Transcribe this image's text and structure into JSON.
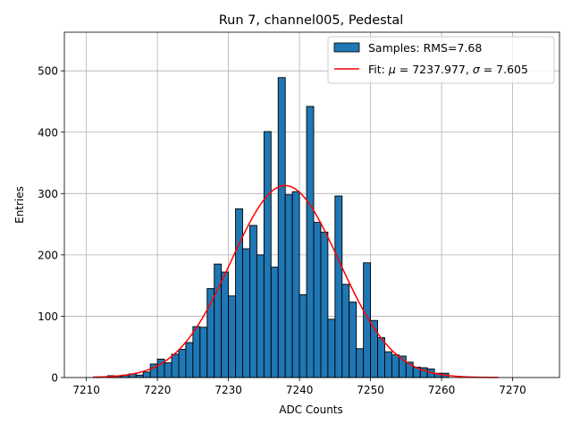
{
  "chart_data": {
    "type": "bar",
    "title": "Run 7, channel005, Pedestal",
    "xlabel": "ADC Counts",
    "ylabel": "Entries",
    "xlim": [
      7206.9,
      7276.6
    ],
    "ylim": [
      0,
      563
    ],
    "xticks": [
      7210,
      7220,
      7230,
      7240,
      7250,
      7260,
      7270
    ],
    "yticks": [
      0,
      100,
      200,
      300,
      400,
      500
    ],
    "grid": true,
    "legend_position": "upper right",
    "legend": {
      "histogram_label": "Samples: RMS=7.68",
      "fit_label_prefix": "Fit: ",
      "fit_mu_symbol": "μ",
      "fit_mu_text": " = 7237.977, ",
      "fit_sigma_symbol": "σ",
      "fit_sigma_text": " = 7.605"
    },
    "histogram": {
      "name": "Samples: RMS=7.68",
      "color": "#1f77b4",
      "edge_color": "#000000",
      "bin_start": 7211,
      "bin_width": 1,
      "counts": [
        1,
        0,
        3,
        2,
        4,
        6,
        4,
        9,
        22,
        30,
        24,
        38,
        46,
        57,
        83,
        82,
        145,
        185,
        172,
        133,
        275,
        210,
        248,
        200,
        401,
        180,
        489,
        298,
        303,
        135,
        442,
        253,
        237,
        95,
        296,
        152,
        123,
        47,
        187,
        93,
        65,
        42,
        37,
        35,
        25,
        17,
        16,
        14,
        7,
        7
      ]
    },
    "fit": {
      "name": "Fit",
      "color": "#ff0000",
      "type": "gaussian",
      "mu": 7237.977,
      "sigma": 7.605,
      "amplitude": 313,
      "x_range": [
        7211,
        7268
      ]
    }
  }
}
